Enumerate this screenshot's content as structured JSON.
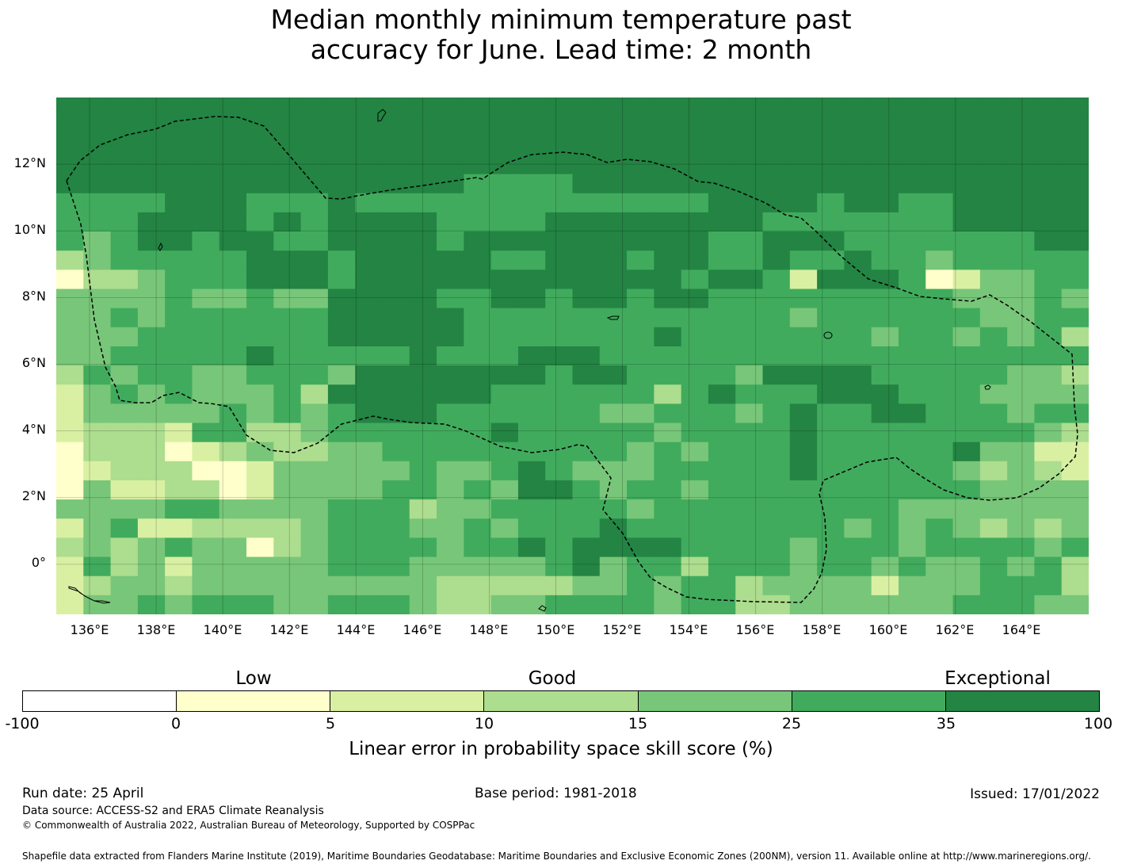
{
  "title_line1": "Median monthly minimum temperature past",
  "title_line2": "accuracy for June. Lead time: 2 month",
  "map": {
    "lon_range": [
      135,
      166
    ],
    "lat_range": [
      -1.5,
      14
    ],
    "lat_ticks": [
      "12°N",
      "10°N",
      "8°N",
      "6°N",
      "4°N",
      "2°N",
      "0°"
    ],
    "lon_ticks": [
      "136°E",
      "138°E",
      "140°E",
      "142°E",
      "144°E",
      "146°E",
      "148°E",
      "150°E",
      "152°E",
      "154°E",
      "156°E",
      "158°E",
      "160°E",
      "162°E",
      "164°E"
    ],
    "grid": "on",
    "eez_boundary": "dashed",
    "category_colors": [
      "#ffffff",
      "#ffffcc",
      "#d9f0a3",
      "#addd8e",
      "#78c679",
      "#41ab5d",
      "#238443"
    ],
    "cell_rows": [
      "66666666666666666666666666666666666666",
      "66666666666666666666666666666666666666",
      "66666666666666666666666666666666666666",
      "66666666666666666666666666666666666666",
      "66666666666666655556666666666666666666",
      "55556665556555555555555566665665566666",
      "55566665656666555566666666555555566666",
      "54566566556666566666666655666555555566",
      "34555556665666665566656655655655455555",
      "13345556665666666666666566526665124455",
      "44445445446666556656656655555555544454",
      "44545555556666655555555555545555554455",
      "44455555556666655555556555555545545453",
      "44555556555556555666555555555555555555",
      "35455445554666666656655554666655555443",
      "24545444536666665555553565556665554444",
      "24444454545666555555445554565566555455",
      "23332553345555556555554555565555555543",
      "13331234334455555555545455565555564422",
      "12333112444445445654445555565555543432",
      "14223312444455454665455455555555554444",
      "44445544445553445555545555555554444444",
      "24522333345554454555655555555454543434",
      "34345441345555455656666555545554555545",
      "25342444445554444456455355545545445453",
      "23443444444444333334454553444424445553",
      "24454555445554334455554553344444455544"
    ]
  },
  "colorbar": {
    "categories": [
      "Low",
      "Good",
      "Exceptional"
    ],
    "ticks": [
      "-100",
      "0",
      "5",
      "10",
      "15",
      "25",
      "35",
      "100"
    ],
    "colors": [
      "#ffffff",
      "#ffffcc",
      "#d9f0a3",
      "#addd8e",
      "#78c679",
      "#41ab5d",
      "#238443"
    ],
    "label": "Linear error in probability space skill score (%)"
  },
  "footer": {
    "run_date": "Run date: 25 April",
    "base_period": "Base period: 1981-2018",
    "issued": "Issued: 17/01/2022",
    "data_source": "Data source: ACCESS-S2 and ERA5 Climate Reanalysis",
    "copyright": "© Commonwealth of Australia 2022, Australian Bureau of Meteorology, Supported by COSPPac",
    "shapefile": "Shapefile data extracted from Flanders Marine Institute (2019), Maritime Boundaries Geodatabase: Maritime Boundaries and Exclusive Economic Zones (200NM), version 11. Available online at http://www.marineregions.org/."
  }
}
